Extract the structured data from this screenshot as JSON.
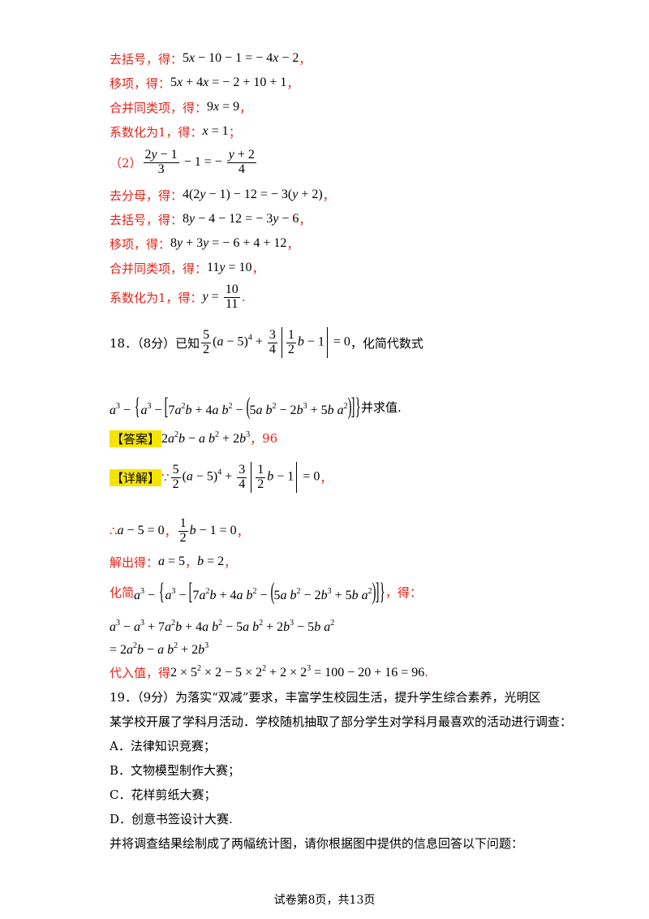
{
  "lines": {
    "l1_label": "去括号，得：",
    "l2_label": "移项，得：",
    "l3_label": "合并同类项，得：",
    "l4_label": "系数化为1，得：",
    "p2_label": "（2）",
    "l6_label": "去分母，得：",
    "l7_label": "去括号，得：",
    "l8_label": "移项，得：",
    "l9_label": "合并同类项，得：",
    "l10_label": "系数化为1，得：",
    "q18_prefix": "18．（8分）已知",
    "q18_suffix": "，化简代数式",
    "q18_end": "并求值.",
    "answer_tag": "【答案】",
    "answer_value": "96",
    "detail_tag": "【详解】",
    "therefore": "∴",
    "solve_label": "解出得：",
    "simplify_label": "化简",
    "simplify_suffix": "，得：",
    "substitute_label": "代入值，得"
  },
  "q19": {
    "intro1": "19．（9分）为落实“双减”要求，丰富学生校园生活，提升学生综合素养，光明区",
    "intro2": "某学校开展了学科月活动．学校随机抽取了部分学生对学科月最喜欢的活动进行调查：",
    "options": [
      "A．法律知识竞赛；",
      "B．文物模型制作大赛；",
      "C．花样剪纸大赛；",
      "D．创意书签设计大赛."
    ],
    "outro": "并将调查结果绘制成了两幅统计图，请你根据图中提供的信息回答以下问题："
  },
  "footer": "试卷第8页，共13页"
}
